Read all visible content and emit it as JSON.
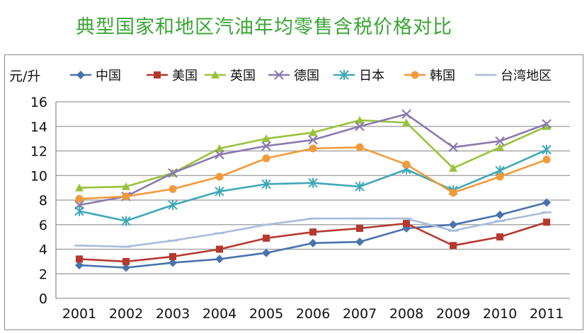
{
  "title": "典型国家和地区汽油年均零售含税价格对比",
  "chart_data": {
    "type": "line",
    "title": "典型国家和地区汽油年均零售含税价格对比",
    "ylabel": "元/升",
    "xlabel": "",
    "ylim": [
      0,
      16
    ],
    "yticks": [
      0,
      2,
      4,
      6,
      8,
      10,
      12,
      14,
      16
    ],
    "categories": [
      "2001",
      "2002",
      "2003",
      "2004",
      "2005",
      "2006",
      "2007",
      "2008",
      "2009",
      "2010",
      "2011"
    ],
    "grid": true,
    "legend_position": "top",
    "series": [
      {
        "name": "中国",
        "color": "#4a73ae",
        "marker": "diamond",
        "values": [
          2.7,
          2.5,
          2.9,
          3.2,
          3.7,
          4.5,
          4.6,
          5.7,
          6.0,
          6.8,
          7.8
        ]
      },
      {
        "name": "美国",
        "color": "#b5382f",
        "marker": "square",
        "values": [
          3.2,
          3.0,
          3.4,
          4.0,
          4.9,
          5.4,
          5.7,
          6.1,
          4.3,
          5.0,
          6.2
        ]
      },
      {
        "name": "英国",
        "color": "#98c23a",
        "marker": "triangle",
        "values": [
          9.0,
          9.1,
          10.2,
          12.2,
          13.0,
          13.5,
          14.5,
          14.3,
          10.6,
          12.3,
          14.0
        ]
      },
      {
        "name": "德国",
        "color": "#8a79ae",
        "marker": "x",
        "values": [
          7.6,
          8.3,
          10.2,
          11.7,
          12.4,
          12.9,
          14.0,
          15.0,
          12.3,
          12.8,
          14.2
        ]
      },
      {
        "name": "日本",
        "color": "#3fa8b7",
        "marker": "star",
        "values": [
          7.1,
          6.3,
          7.6,
          8.7,
          9.3,
          9.4,
          9.1,
          10.5,
          8.8,
          10.4,
          12.1
        ]
      },
      {
        "name": "韩国",
        "color": "#f29a3a",
        "marker": "circle",
        "values": [
          8.1,
          8.3,
          8.9,
          9.9,
          11.4,
          12.2,
          12.3,
          10.9,
          8.6,
          9.9,
          11.3
        ]
      },
      {
        "name": "台湾地区",
        "color": "#a9bbdb",
        "marker": "dash",
        "values": [
          4.3,
          4.2,
          4.7,
          5.3,
          6.0,
          6.5,
          6.5,
          6.5,
          5.5,
          6.3,
          7.0
        ]
      }
    ]
  }
}
